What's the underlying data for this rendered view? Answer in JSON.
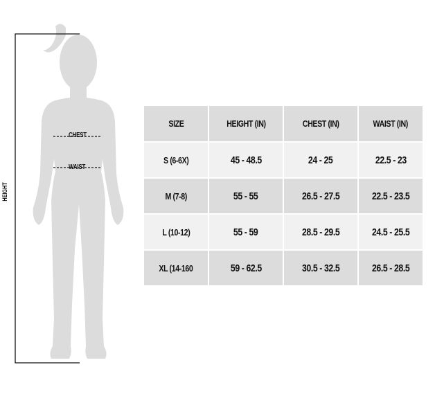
{
  "figure": {
    "height_label": "HEIGHT",
    "chest_label": "CHEST",
    "waist_label": "WAIST",
    "silhouette_color": "#dcdcdc"
  },
  "table": {
    "headers": [
      "SIZE",
      "HEIGHT (IN)",
      "CHEST (IN)",
      "WAIST (IN)"
    ],
    "rows": [
      [
        "S (6-6X)",
        "45 - 48.5",
        "24 - 25",
        "22.5 - 23"
      ],
      [
        "M (7-8)",
        "55 - 55",
        "26.5 - 27.5",
        "22.5 - 23.5"
      ],
      [
        "L (10-12)",
        "55 - 59",
        "28.5 - 29.5",
        "24.5 - 25.5"
      ],
      [
        "XL (14-160",
        "59 - 62.5",
        "30.5 - 32.5",
        "26.5 - 28.5"
      ]
    ],
    "header_color": "#dcdcdc",
    "row_light_color": "#f1f1f1",
    "row_dark_color": "#dcdcdc"
  }
}
